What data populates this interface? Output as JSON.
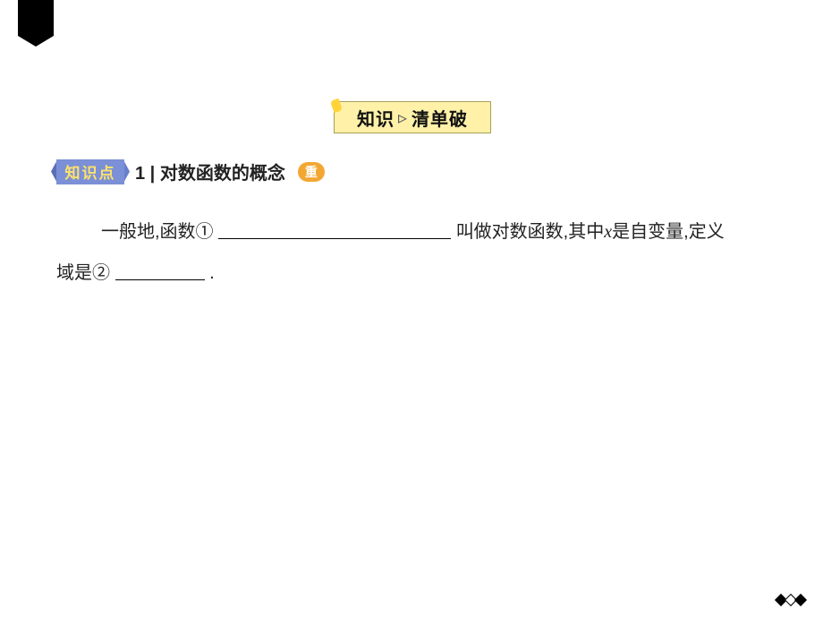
{
  "ribbon": {
    "color": "#000000"
  },
  "section_header": {
    "left_text": "知识",
    "separator_glyph": "▹",
    "right_text": "清单破",
    "bg_color": "#fff1a8",
    "text_color": "#111111"
  },
  "knowledge_point": {
    "badge_text": "知识点",
    "badge_bg": "#7b90d6",
    "badge_fg": "#ffe26a",
    "number": "1",
    "separator": " | ",
    "title": "对数函数的概念",
    "tag_text": "重",
    "tag_bg": "#f3a733"
  },
  "body": {
    "line1_prefix": "一般地,函数①",
    "blank1_hint": "",
    "line1_suffix_a": "  叫做对数函数,其中",
    "var_x": "x",
    "line1_suffix_b": "是自变量,定义",
    "line2_prefix": "域是②",
    "line2_suffix": "."
  },
  "decor": {
    "diamonds": [
      "solid",
      "hollow",
      "solid"
    ]
  }
}
